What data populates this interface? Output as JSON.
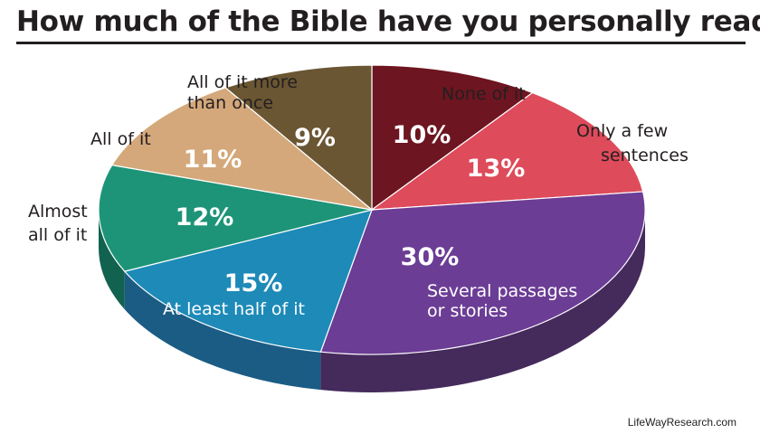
{
  "title": "How much of the Bible have you personally read?",
  "source": "LifeWayResearch.com",
  "chart_data": {
    "type": "pie",
    "title": "How much of the Bible have you personally read?",
    "slices": [
      {
        "label": "None of it",
        "value": 10,
        "display": "10%",
        "color": "#6d1520",
        "side": "#4c0e16"
      },
      {
        "label": "Only a few sentences",
        "value": 13,
        "display": "13%",
        "color": "#de4b5b",
        "side": "#a8343f"
      },
      {
        "label": "Several passages or stories",
        "value": 30,
        "display": "30%",
        "color": "#6b3d95",
        "side": "#452a5c"
      },
      {
        "label": "At least half of it",
        "value": 15,
        "display": "15%",
        "color": "#1d8ab8",
        "side": "#1b5c85"
      },
      {
        "label": "Almost all of it",
        "value": 12,
        "display": "12%",
        "color": "#1d9478",
        "side": "#126250"
      },
      {
        "label": "All of it",
        "value": 11,
        "display": "11%",
        "color": "#d4a87a",
        "side": "#a07a52"
      },
      {
        "label": "All of it more than once",
        "value": 9,
        "display": "9%",
        "color": "#6b5633",
        "side": "#4a3b23"
      }
    ]
  },
  "label_lines": {
    "none": [
      "None of it"
    ],
    "few": [
      "Only a few",
      "sentences"
    ],
    "several": [
      "Several passages",
      "or stories"
    ],
    "half": [
      "At least half of it"
    ],
    "almost": [
      "Almost",
      "all of it"
    ],
    "all": [
      "All of it"
    ],
    "more": [
      "All of it more",
      "than once"
    ]
  }
}
